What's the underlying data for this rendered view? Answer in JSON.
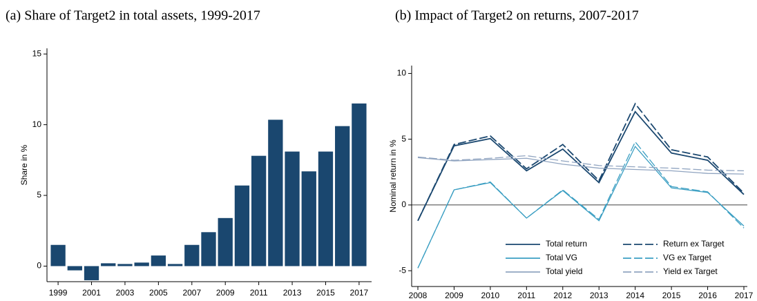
{
  "chart_data": [
    {
      "type": "bar",
      "title": "(a) Share of Target2 in total assets, 1999-2017",
      "ylabel": "Share in %",
      "categories": [
        "1999",
        null,
        "2001",
        null,
        "2003",
        null,
        "2005",
        null,
        "2007",
        null,
        "2009",
        null,
        "2011",
        null,
        "2013",
        null,
        "2015",
        null,
        "2017"
      ],
      "values": [
        1.5,
        -0.3,
        -1.0,
        0.2,
        0.15,
        0.25,
        0.75,
        0.15,
        1.5,
        2.4,
        3.4,
        5.7,
        7.8,
        10.35,
        8.1,
        6.7,
        8.1,
        9.9,
        11.5
      ],
      "color": "#1a476f",
      "ylim": [
        -1.1,
        15.4
      ],
      "yticks": [
        0,
        5,
        10,
        15
      ]
    },
    {
      "type": "line",
      "title": "(b) Impact of Target2 on returns, 2007-2017",
      "ylabel": "Nominal return in %",
      "x": [
        2008,
        2009,
        2010,
        2011,
        2012,
        2013,
        2014,
        2015,
        2016,
        2017
      ],
      "xlim": [
        2008,
        2017
      ],
      "xticks": [
        2008,
        2009,
        2010,
        2011,
        2012,
        2013,
        2014,
        2015,
        2016,
        2017
      ],
      "ylim": [
        -6.2,
        10.6
      ],
      "yticks": [
        -5,
        0,
        5,
        10
      ],
      "zero_line": true,
      "legend_position": "lower right",
      "legend_columns": 2,
      "series": [
        {
          "name": "Total return",
          "color": "#1a476f",
          "dashed": false,
          "values": [
            -1.2,
            4.5,
            5.05,
            2.6,
            4.25,
            1.7,
            7.1,
            3.95,
            3.4,
            0.8
          ]
        },
        {
          "name": "Return ex Target",
          "color": "#1a476f",
          "dashed": true,
          "values": [
            -1.2,
            4.6,
            5.25,
            2.75,
            4.6,
            1.85,
            7.7,
            4.2,
            3.65,
            0.9
          ]
        },
        {
          "name": "Total VG",
          "color": "#3a9ec2",
          "dashed": false,
          "values": [
            -4.8,
            1.15,
            1.7,
            -1.0,
            1.1,
            -1.2,
            4.45,
            1.3,
            0.95,
            -1.6
          ]
        },
        {
          "name": "VG ex Target",
          "color": "#3a9ec2",
          "dashed": true,
          "values": [
            -4.8,
            1.15,
            1.75,
            -1.0,
            1.15,
            -1.1,
            4.8,
            1.4,
            1.0,
            -1.75
          ]
        },
        {
          "name": "Total yield",
          "color": "#90a4c0",
          "dashed": false,
          "values": [
            3.6,
            3.35,
            3.45,
            3.55,
            3.1,
            2.8,
            2.7,
            2.6,
            2.4,
            2.35
          ]
        },
        {
          "name": "Yield ex Target",
          "color": "#90a4c0",
          "dashed": true,
          "values": [
            3.65,
            3.4,
            3.55,
            3.75,
            3.35,
            3.0,
            2.9,
            2.8,
            2.65,
            2.6
          ]
        }
      ]
    }
  ]
}
